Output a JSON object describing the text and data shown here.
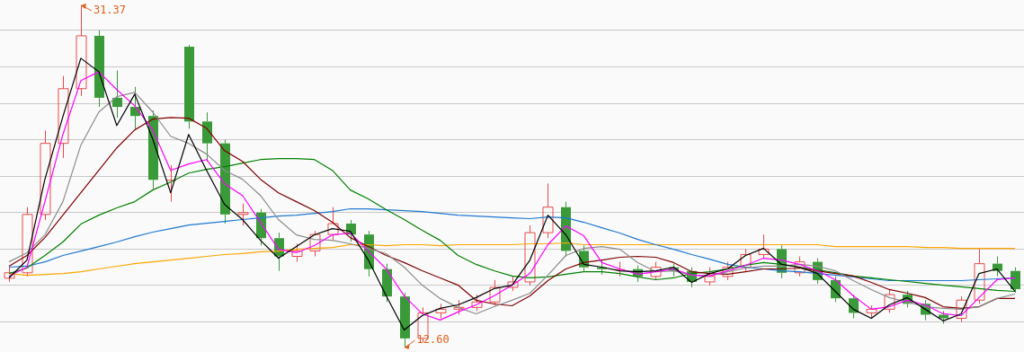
{
  "chart_data": {
    "type": "candlestick",
    "categories": [
      null,
      null,
      null,
      null,
      null,
      null,
      null,
      null,
      null,
      null,
      null,
      null,
      null,
      null,
      null,
      null,
      null,
      null,
      null,
      null,
      null,
      null,
      null,
      null,
      null,
      null,
      null,
      null,
      null,
      null,
      null,
      null,
      null,
      null,
      null,
      null,
      null,
      null,
      null,
      null,
      null,
      null,
      null,
      null,
      null,
      null,
      null,
      null,
      null,
      null,
      null,
      null,
      null,
      null,
      null,
      null,
      null
    ],
    "ohlc": [
      [
        16.4,
        17.0,
        16.2,
        16.7
      ],
      [
        16.7,
        20.3,
        16.5,
        19.9
      ],
      [
        19.9,
        24.5,
        19.6,
        23.8
      ],
      [
        23.8,
        27.5,
        23.0,
        26.8
      ],
      [
        26.8,
        31.37,
        26.4,
        29.7
      ],
      [
        29.7,
        30.0,
        25.8,
        26.3
      ],
      [
        26.3,
        27.8,
        25.2,
        25.8
      ],
      [
        25.8,
        26.9,
        24.6,
        25.3
      ],
      [
        25.3,
        25.6,
        21.3,
        21.8
      ],
      [
        21.8,
        22.6,
        20.6,
        21.8
      ],
      [
        29.1,
        29.2,
        24.6,
        25.0
      ],
      [
        25.0,
        25.5,
        22.8,
        23.8
      ],
      [
        23.8,
        24.0,
        19.4,
        19.9
      ],
      [
        19.9,
        20.5,
        19.3,
        20.0
      ],
      [
        20.0,
        20.2,
        18.2,
        18.6
      ],
      [
        18.6,
        18.9,
        16.8,
        17.6
      ],
      [
        17.6,
        18.3,
        17.3,
        17.9
      ],
      [
        17.9,
        19.0,
        17.6,
        18.8
      ],
      [
        18.8,
        20.3,
        18.5,
        19.4
      ],
      [
        19.4,
        19.6,
        18.4,
        18.8
      ],
      [
        18.8,
        19.0,
        16.5,
        16.9
      ],
      [
        16.9,
        17.2,
        15.1,
        15.4
      ],
      [
        15.4,
        15.6,
        12.6,
        13.1
      ],
      [
        13.1,
        14.8,
        12.9,
        14.5
      ],
      [
        14.5,
        15.0,
        14.2,
        14.7
      ],
      [
        14.7,
        15.2,
        14.4,
        14.8
      ],
      [
        14.8,
        15.5,
        14.6,
        15.1
      ],
      [
        15.1,
        16.3,
        14.9,
        15.9
      ],
      [
        15.9,
        16.5,
        15.7,
        16.2
      ],
      [
        16.2,
        19.3,
        16.0,
        18.9
      ],
      [
        18.9,
        21.6,
        18.6,
        20.3
      ],
      [
        20.3,
        20.6,
        17.6,
        17.9
      ],
      [
        17.9,
        18.2,
        16.8,
        17.0
      ],
      [
        17.0,
        17.4,
        16.6,
        16.9
      ],
      [
        16.9,
        17.3,
        16.5,
        16.9
      ],
      [
        16.9,
        17.1,
        16.2,
        16.5
      ],
      [
        16.5,
        17.3,
        16.3,
        17.0
      ],
      [
        17.0,
        17.2,
        16.5,
        16.8
      ],
      [
        16.8,
        17.0,
        15.9,
        16.2
      ],
      [
        16.2,
        17.0,
        16.0,
        16.5
      ],
      [
        16.5,
        17.3,
        16.3,
        17.0
      ],
      [
        17.0,
        18.0,
        16.8,
        17.7
      ],
      [
        17.7,
        18.8,
        17.5,
        18.0
      ],
      [
        18.0,
        18.2,
        16.4,
        16.7
      ],
      [
        16.7,
        17.6,
        16.5,
        17.3
      ],
      [
        17.3,
        17.5,
        16.1,
        16.3
      ],
      [
        16.3,
        16.5,
        15.1,
        15.3
      ],
      [
        15.3,
        15.5,
        14.2,
        14.5
      ],
      [
        14.5,
        14.9,
        14.2,
        14.7
      ],
      [
        14.7,
        15.8,
        14.5,
        15.5
      ],
      [
        15.5,
        15.7,
        14.8,
        15.0
      ],
      [
        15.0,
        15.2,
        14.1,
        14.4
      ],
      [
        14.4,
        14.6,
        13.9,
        14.2
      ],
      [
        14.2,
        15.4,
        14.0,
        15.2
      ],
      [
        15.2,
        18.0,
        15.0,
        17.2
      ],
      [
        17.2,
        17.6,
        16.5,
        16.8
      ],
      [
        16.8,
        17.0,
        15.6,
        15.8
      ]
    ],
    "colors": [
      "#e84a4a",
      "#e84a4a",
      "#e84a4a",
      "#e84a4a",
      "#e84a4a",
      "#3a9a3a",
      "#3a9a3a",
      "#3a9a3a",
      "#3a9a3a",
      "#e84a4a",
      "#3a9a3a",
      "#3a9a3a",
      "#3a9a3a",
      "#e84a4a",
      "#3a9a3a",
      "#3a9a3a",
      "#e84a4a",
      "#e84a4a",
      "#e84a4a",
      "#3a9a3a",
      "#3a9a3a",
      "#3a9a3a",
      "#3a9a3a",
      "#e84a4a",
      "#e84a4a",
      "#e84a4a",
      "#e84a4a",
      "#e84a4a",
      "#e84a4a",
      "#e84a4a",
      "#e84a4a",
      "#3a9a3a",
      "#3a9a3a",
      "#3a9a3a",
      "#e84a4a",
      "#3a9a3a",
      "#e84a4a",
      "#3a9a3a",
      "#3a9a3a",
      "#e84a4a",
      "#e84a4a",
      "#e84a4a",
      "#e84a4a",
      "#3a9a3a",
      "#e84a4a",
      "#3a9a3a",
      "#3a9a3a",
      "#3a9a3a",
      "#e84a4a",
      "#e84a4a",
      "#3a9a3a",
      "#3a9a3a",
      "#3a9a3a",
      "#e84a4a",
      "#e84a4a",
      "#3a9a3a",
      "#3a9a3a"
    ],
    "series": [
      {
        "type": "line",
        "color": "#000000",
        "values": [
          16.42,
          17.4,
          21.83,
          25.27,
          28.47,
          27.73,
          24.78,
          26.5,
          24.04,
          21.09,
          24.29,
          22.32,
          20.45,
          19.62,
          18.48,
          17.5,
          18.14,
          18.78,
          19.12,
          18.98,
          17.4,
          15.43,
          13.56,
          14.35,
          14.75,
          14.94,
          15.34,
          15.83,
          16.02,
          17.4,
          19.86,
          18.78,
          17.16,
          17.01,
          16.81,
          16.76,
          16.81,
          17.01,
          16.17,
          16.66,
          16.91,
          17.65,
          18.04,
          17.16,
          17.01,
          16.66,
          15.68,
          14.7,
          14.2,
          14.94,
          15.34,
          14.7,
          14.06,
          14.45,
          16.66,
          16.91,
          15.68
        ]
      },
      {
        "type": "line",
        "color": "#ff00ff",
        "values": [
          16.52,
          17.01,
          20.6,
          24.29,
          27.24,
          27.73,
          26.75,
          25.86,
          24.54,
          22.32,
          22.67,
          22.91,
          21.58,
          20.94,
          19.47,
          17.99,
          17.8,
          18.19,
          18.78,
          18.88,
          17.89,
          16.91,
          15.43,
          14.45,
          14.11,
          14.55,
          14.94,
          15.43,
          16.02,
          16.66,
          18.24,
          19.27,
          18.73,
          17.26,
          16.91,
          16.62,
          16.76,
          16.91,
          16.57,
          16.52,
          16.81,
          17.11,
          17.5,
          17.4,
          17.16,
          16.81,
          16.32,
          15.43,
          14.7,
          14.84,
          15.19,
          14.94,
          14.45,
          14.35,
          15.34,
          16.32,
          16.42
        ]
      },
      {
        "type": "line",
        "color": "#8c8c8c",
        "values": [
          17.3,
          17.8,
          18.78,
          20.6,
          23.7,
          25.52,
          26.36,
          26.6,
          25.52,
          24.19,
          23.8,
          23.21,
          22.32,
          21.83,
          20.94,
          19.62,
          18.78,
          18.53,
          18.48,
          18.29,
          18.04,
          17.75,
          17.01,
          16.02,
          15.29,
          14.8,
          14.45,
          14.84,
          15.19,
          15.58,
          16.57,
          17.65,
          18.04,
          18.14,
          17.99,
          17.26,
          16.76,
          16.81,
          16.57,
          16.52,
          16.76,
          16.96,
          17.06,
          17.06,
          17.16,
          17.06,
          16.81,
          16.27,
          15.78,
          15.34,
          15.09,
          14.84,
          14.75,
          14.7,
          14.84,
          15.29,
          15.53
        ]
      },
      {
        "type": "line",
        "color": "#800000",
        "values": [
          17.06,
          17.65,
          18.63,
          19.86,
          21.09,
          22.32,
          23.55,
          24.54,
          25.13,
          25.22,
          25.18,
          24.63,
          23.4,
          22.81,
          21.83,
          21.09,
          20.6,
          20.11,
          19.47,
          18.63,
          18.14,
          17.65,
          17.26,
          16.81,
          16.42,
          16.02,
          15.19,
          14.99,
          14.89,
          15.43,
          16.27,
          16.91,
          17.26,
          17.4,
          17.55,
          17.6,
          17.55,
          17.26,
          16.76,
          16.66,
          16.62,
          16.76,
          16.91,
          16.91,
          16.96,
          16.81,
          16.66,
          16.52,
          16.17,
          15.78,
          15.58,
          15.34,
          14.84,
          14.75,
          14.84,
          15.29,
          15.29
        ]
      },
      {
        "type": "line",
        "color": "#008000",
        "values": [
          16.66,
          16.96,
          17.65,
          18.39,
          19.37,
          19.86,
          20.26,
          20.6,
          21.24,
          21.68,
          22.17,
          22.37,
          22.52,
          22.72,
          22.91,
          22.96,
          22.96,
          22.91,
          22.32,
          21.24,
          20.75,
          20.16,
          19.62,
          19.03,
          18.48,
          17.65,
          17.16,
          16.81,
          16.52,
          16.42,
          16.47,
          16.62,
          16.76,
          16.76,
          16.66,
          16.47,
          16.32,
          16.42,
          16.66,
          16.76,
          16.91,
          17.11,
          17.26,
          17.16,
          17.01,
          16.86,
          16.71,
          16.52,
          16.42,
          16.32,
          16.22,
          16.12,
          16.02,
          15.93,
          15.83,
          15.73,
          15.68
        ]
      },
      {
        "type": "line",
        "color": "#1f78d1",
        "values": [
          17.01,
          17.06,
          17.3,
          17.65,
          17.89,
          18.14,
          18.39,
          18.68,
          18.93,
          19.12,
          19.32,
          19.42,
          19.52,
          19.62,
          19.71,
          19.81,
          19.86,
          19.96,
          20.06,
          20.21,
          20.21,
          20.16,
          20.11,
          20.06,
          19.96,
          19.86,
          19.81,
          19.76,
          19.71,
          19.67,
          19.76,
          19.71,
          19.47,
          19.17,
          18.88,
          18.53,
          18.24,
          17.99,
          17.7,
          17.45,
          17.16,
          17.01,
          16.91,
          16.81,
          16.76,
          16.66,
          16.57,
          16.47,
          16.37,
          16.27,
          16.27,
          16.27,
          16.27,
          16.27,
          16.32,
          16.37,
          16.42
        ]
      },
      {
        "type": "line",
        "color": "#ffa500",
        "values": [
          16.66,
          16.56,
          16.61,
          16.66,
          16.76,
          16.91,
          17.06,
          17.2,
          17.3,
          17.4,
          17.5,
          17.6,
          17.7,
          17.75,
          17.85,
          17.89,
          17.99,
          18.04,
          18.09,
          18.24,
          18.24,
          18.19,
          18.24,
          18.24,
          18.19,
          18.24,
          18.24,
          18.24,
          18.24,
          18.29,
          18.29,
          18.34,
          18.24,
          18.24,
          18.24,
          18.24,
          18.24,
          18.24,
          18.24,
          18.24,
          18.24,
          18.24,
          18.24,
          18.24,
          18.24,
          18.24,
          18.14,
          18.14,
          18.14,
          18.14,
          18.14,
          18.09,
          18.09,
          18.04,
          18.04,
          18.04,
          18.04
        ]
      }
    ],
    "annotations": [
      "31.37",
      "12.60"
    ],
    "yticks": [
      {
        "value": 14,
        "label": null
      },
      {
        "value": 16,
        "label": null
      },
      {
        "value": 18,
        "label": null
      },
      {
        "value": 20,
        "label": null
      },
      {
        "value": 22,
        "label": null
      },
      {
        "value": 24,
        "label": null
      },
      {
        "value": 26,
        "label": null
      },
      {
        "value": 28,
        "label": null
      },
      {
        "value": 30,
        "label": null
      }
    ],
    "grid": "y",
    "tick_labels": false,
    "legend": false
  }
}
